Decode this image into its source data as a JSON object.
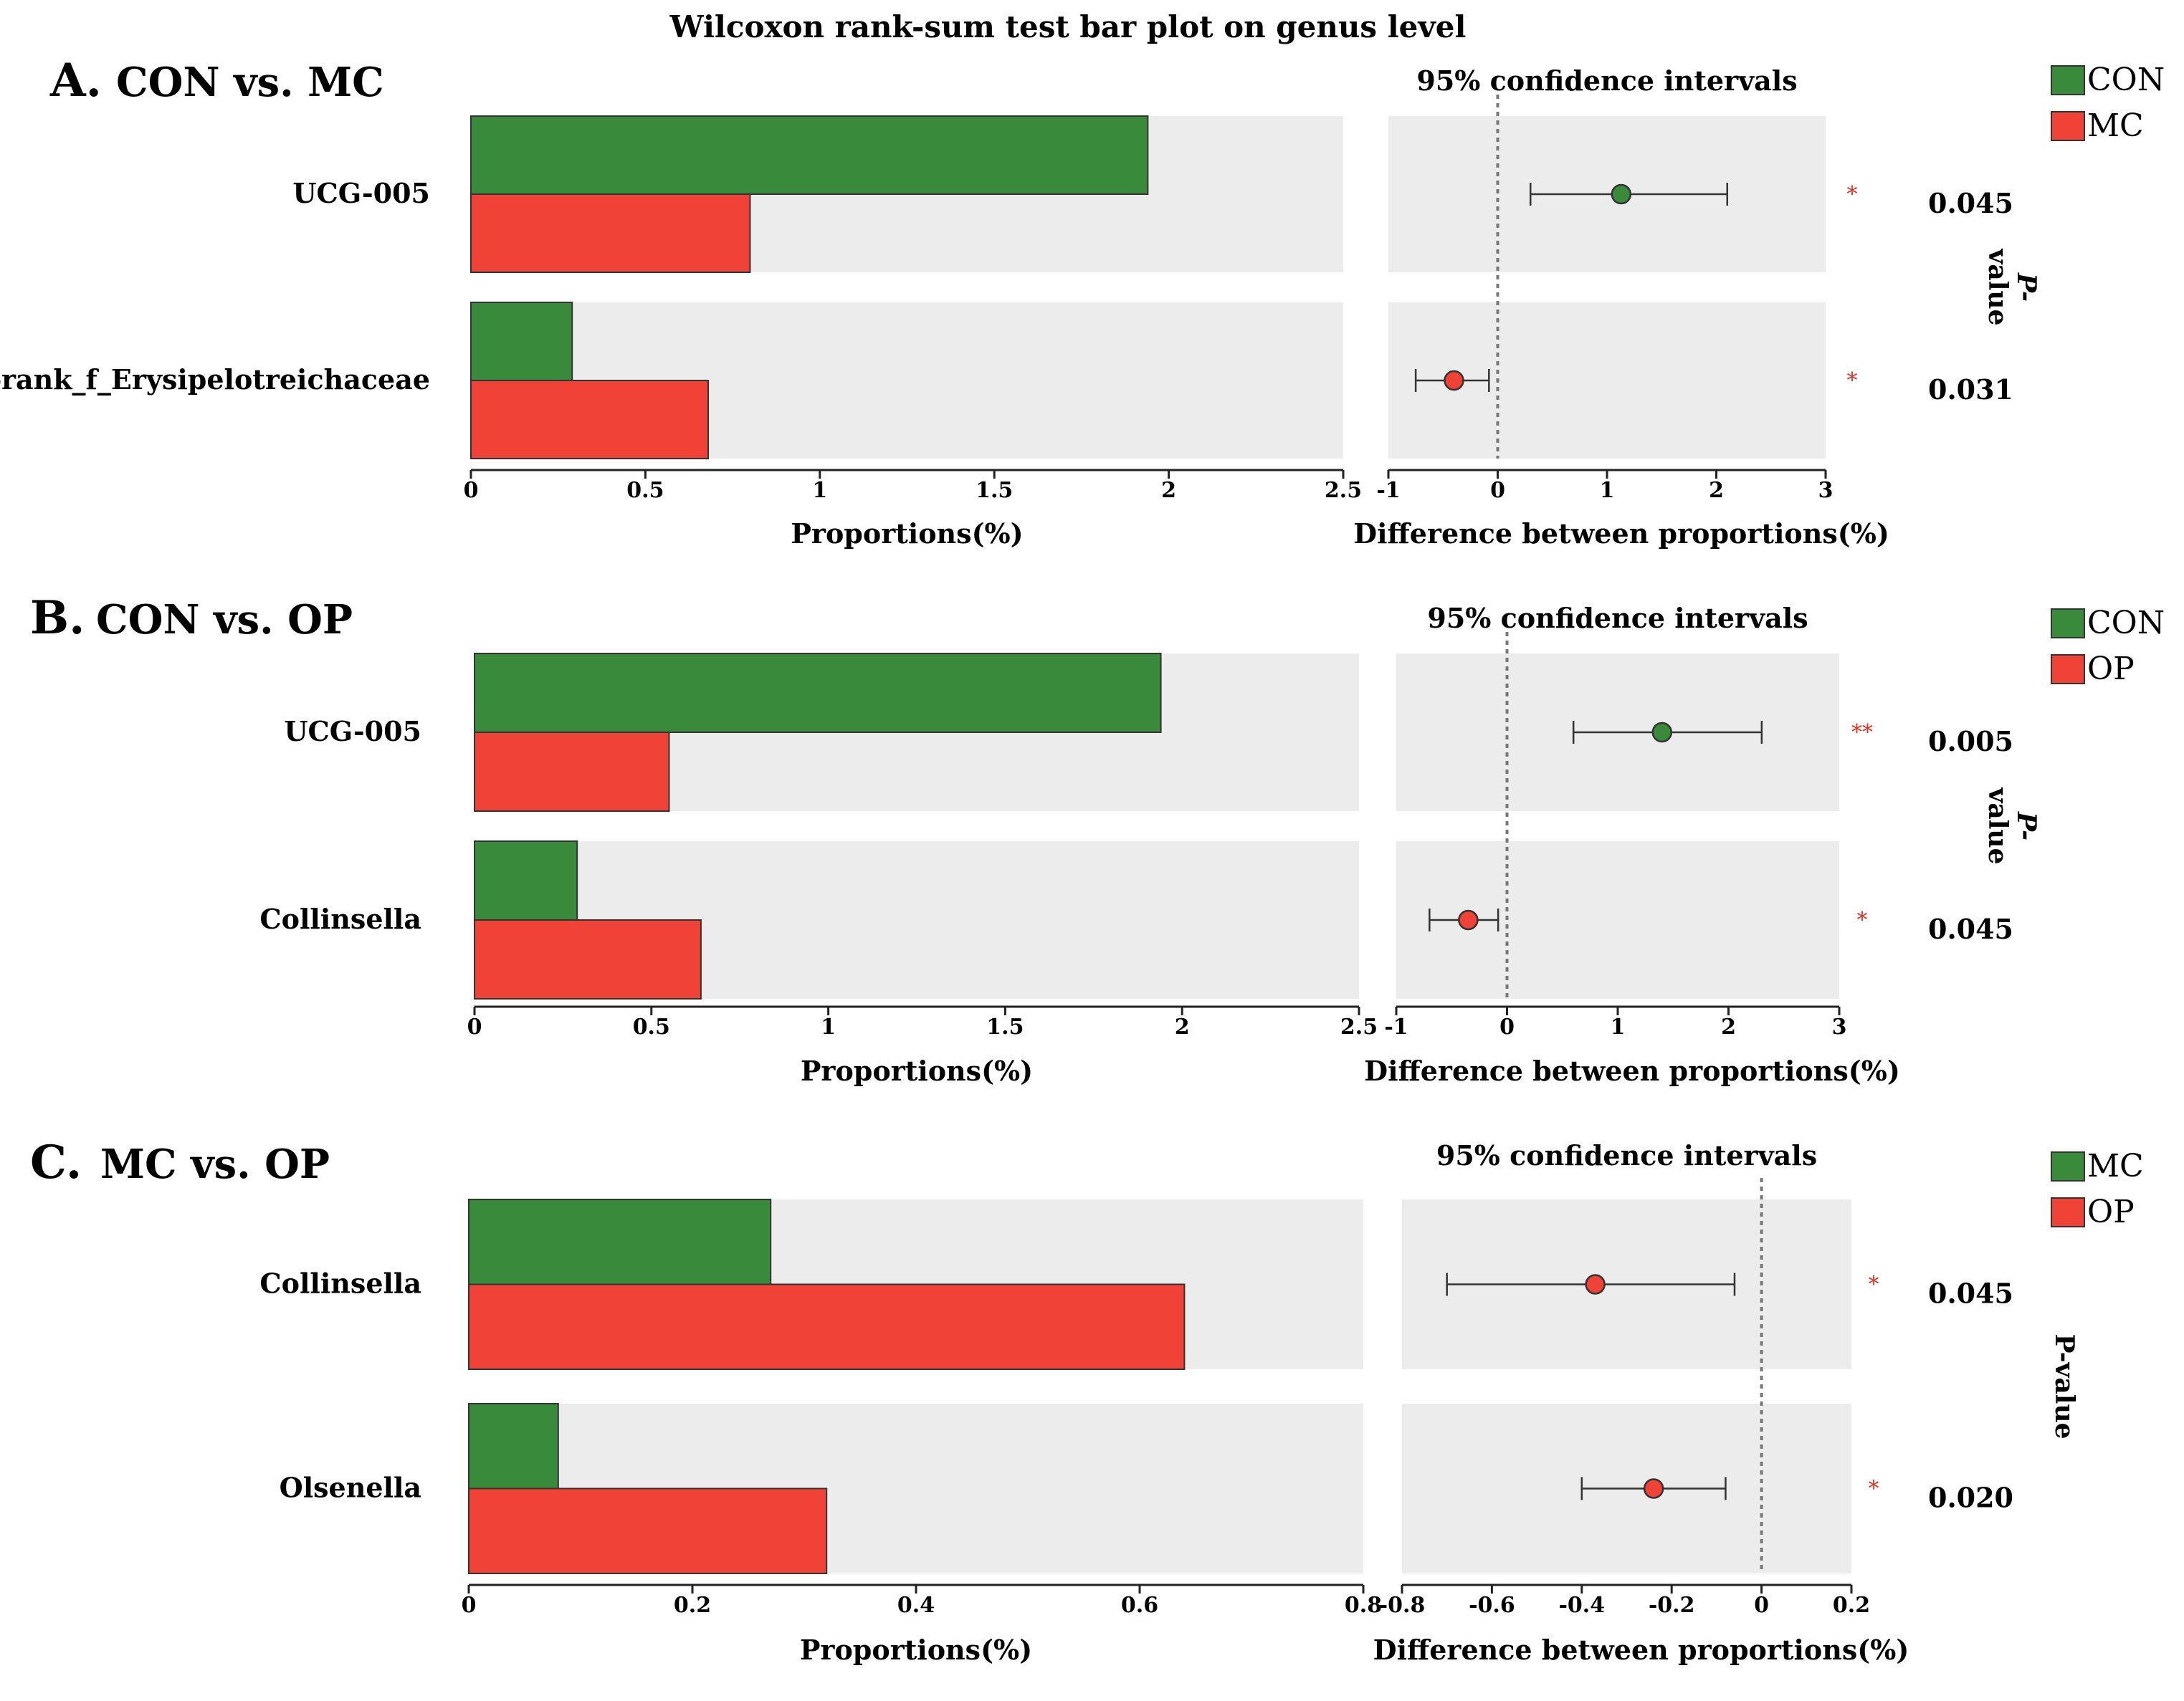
{
  "title": "Wilcoxon rank-sum test bar plot on genus level",
  "colors": {
    "group1": "#3a8a3c",
    "group2": "#f04236",
    "panel_bg": "#ececec",
    "axis": "#222222",
    "star": "#e03020"
  },
  "chart_data": [
    {
      "type": "bar",
      "panel": "A.",
      "comparison": "CON vs. MC",
      "groups": [
        "CON",
        "MC"
      ],
      "categories": [
        "UCG-005",
        "norank_f_Erysipelotreichaceae"
      ],
      "series": [
        {
          "name": "CON",
          "values": [
            1.94,
            0.29
          ]
        },
        {
          "name": "MC",
          "values": [
            0.8,
            0.68
          ]
        }
      ],
      "xlabel": "Proportions(%)",
      "xlim": [
        0,
        2.5
      ],
      "xticks": [
        "0",
        "0.5",
        "1",
        "1.5",
        "2",
        "2.5"
      ],
      "ci_title": "95% confidence intervals",
      "ci_xlabel": "Difference between proportions(%)",
      "ci_xlim": [
        -1,
        3
      ],
      "ci_xticks": [
        "-1",
        "0",
        "1",
        "2",
        "3"
      ],
      "differences": [
        {
          "estimate": 1.13,
          "lower": 0.3,
          "upper": 2.1,
          "favors": "CON"
        },
        {
          "estimate": -0.4,
          "lower": -0.75,
          "upper": -0.08,
          "favors": "MC"
        }
      ],
      "significance": [
        "*",
        "*"
      ],
      "p_values": [
        "0.045",
        "0.031"
      ],
      "p_label_line1": "P-",
      "p_label_line2": "value"
    },
    {
      "type": "bar",
      "panel": "B.",
      "comparison": "CON vs. OP",
      "groups": [
        "CON",
        "OP"
      ],
      "categories": [
        "UCG-005",
        "Collinsella"
      ],
      "series": [
        {
          "name": "CON",
          "values": [
            1.94,
            0.29
          ]
        },
        {
          "name": "OP",
          "values": [
            0.55,
            0.64
          ]
        }
      ],
      "xlabel": "Proportions(%)",
      "xlim": [
        0,
        2.5
      ],
      "xticks": [
        "0",
        "0.5",
        "1",
        "1.5",
        "2",
        "2.5"
      ],
      "ci_title": "95% confidence intervals",
      "ci_xlabel": "Difference between proportions(%)",
      "ci_xlim": [
        -1,
        3
      ],
      "ci_xticks": [
        "-1",
        "0",
        "1",
        "2",
        "3"
      ],
      "differences": [
        {
          "estimate": 1.4,
          "lower": 0.6,
          "upper": 2.3,
          "favors": "CON"
        },
        {
          "estimate": -0.35,
          "lower": -0.7,
          "upper": -0.08,
          "favors": "OP"
        }
      ],
      "significance": [
        "**",
        "*"
      ],
      "p_values": [
        "0.005",
        "0.045"
      ],
      "p_label_line1": "P-",
      "p_label_line2": "value"
    },
    {
      "type": "bar",
      "panel": "C.",
      "comparison": "MC vs. OP",
      "groups": [
        "MC",
        "OP"
      ],
      "categories": [
        "Collinsella",
        "Olsenella"
      ],
      "series": [
        {
          "name": "MC",
          "values": [
            0.27,
            0.08
          ]
        },
        {
          "name": "OP",
          "values": [
            0.64,
            0.32
          ]
        }
      ],
      "xlabel": "Proportions(%)",
      "xlim": [
        0,
        0.8
      ],
      "xticks": [
        "0",
        "0.2",
        "0.4",
        "0.6",
        "0.8"
      ],
      "ci_title": "95% confidence intervals",
      "ci_xlabel": "Difference between proportions(%)",
      "ci_xlim": [
        -0.8,
        0.2
      ],
      "ci_xticks": [
        "-0.8",
        "-0.6",
        "-0.4",
        "-0.2",
        "0",
        "0.2"
      ],
      "differences": [
        {
          "estimate": -0.37,
          "lower": -0.7,
          "upper": -0.06,
          "favors": "OP"
        },
        {
          "estimate": -0.24,
          "lower": -0.4,
          "upper": -0.08,
          "favors": "OP"
        }
      ],
      "significance": [
        "*",
        "*"
      ],
      "p_values": [
        "0.045",
        "0.020"
      ],
      "p_label_line1": "P-value",
      "p_label_line2": ""
    }
  ]
}
